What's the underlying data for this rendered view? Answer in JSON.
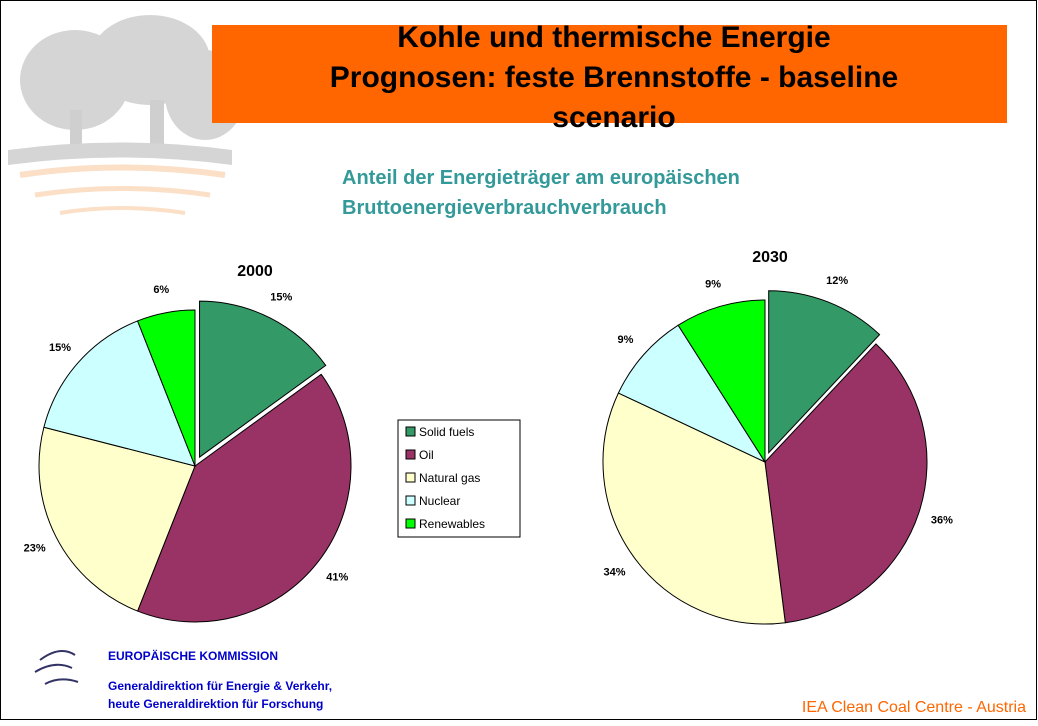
{
  "slide": {
    "title_lines": [
      "Kohle und thermische Energie",
      "Prognosen: feste Brennstoffe - baseline",
      "scenario"
    ],
    "subtitle_lines": [
      "Anteil der Energieträger am europäischen",
      "Bruttoenergieverbrauchverbrauch"
    ],
    "org_lines": [
      "EUROPÄISCHE KOMMISSION",
      "Generaldirektion für Energie & Verkehr,",
      "heute Generaldirektion für Forschung"
    ],
    "footer": "IEA Clean Coal Centre - Austria"
  },
  "chart_data": [
    {
      "type": "pie",
      "title": "2000",
      "categories": [
        "Solid fuels",
        "Oil",
        "Natural gas",
        "Nuclear",
        "Renewables"
      ],
      "values": [
        15,
        41,
        23,
        15,
        6
      ],
      "value_labels": [
        "15%",
        "41%",
        "23%",
        "15%",
        "6%"
      ],
      "colors": [
        "#339966",
        "#993366",
        "#ffffcc",
        "#ccffff",
        "#00ff00"
      ],
      "legend": true
    },
    {
      "type": "pie",
      "title": "2030",
      "categories": [
        "Solid fuels",
        "Oil",
        "Natural gas",
        "Nuclear",
        "Renewables"
      ],
      "values": [
        12,
        36,
        34,
        9,
        9
      ],
      "value_labels": [
        "12%",
        "36%",
        "34%",
        "9%",
        "9%"
      ],
      "colors": [
        "#339966",
        "#993366",
        "#ffffcc",
        "#ccffff",
        "#00ff00"
      ],
      "legend": false
    }
  ]
}
